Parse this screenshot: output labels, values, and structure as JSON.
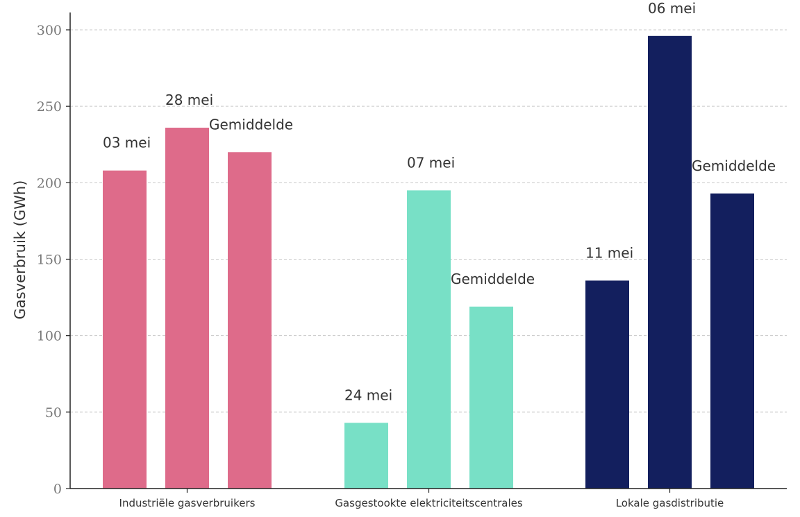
{
  "chart_data": {
    "type": "bar",
    "ylabel": "Gasverbruik (GWh)",
    "xlabel": "",
    "ylim": [
      0,
      300
    ],
    "yticks": [
      0,
      50,
      100,
      150,
      200,
      250,
      300
    ],
    "grid": "horizontal-dashed",
    "groups": [
      {
        "category": "Industriële gasverbruikers",
        "color": "#de6b8a",
        "bars": [
          {
            "label": "03 mei",
            "value": 208
          },
          {
            "label": "28 mei",
            "value": 236
          },
          {
            "label": "Gemiddelde",
            "value": 220
          }
        ]
      },
      {
        "category": "Gasgestookte elektriciteitscentrales",
        "color": "#78e0c6",
        "bars": [
          {
            "label": "24 mei",
            "value": 43
          },
          {
            "label": "07 mei",
            "value": 195
          },
          {
            "label": "Gemiddelde",
            "value": 119
          }
        ]
      },
      {
        "category": "Lokale gasdistributie",
        "color": "#131f5e",
        "bars": [
          {
            "label": "11 mei",
            "value": 136
          },
          {
            "label": "06 mei",
            "value": 296
          },
          {
            "label": "Gemiddelde",
            "value": 193
          }
        ]
      }
    ]
  }
}
